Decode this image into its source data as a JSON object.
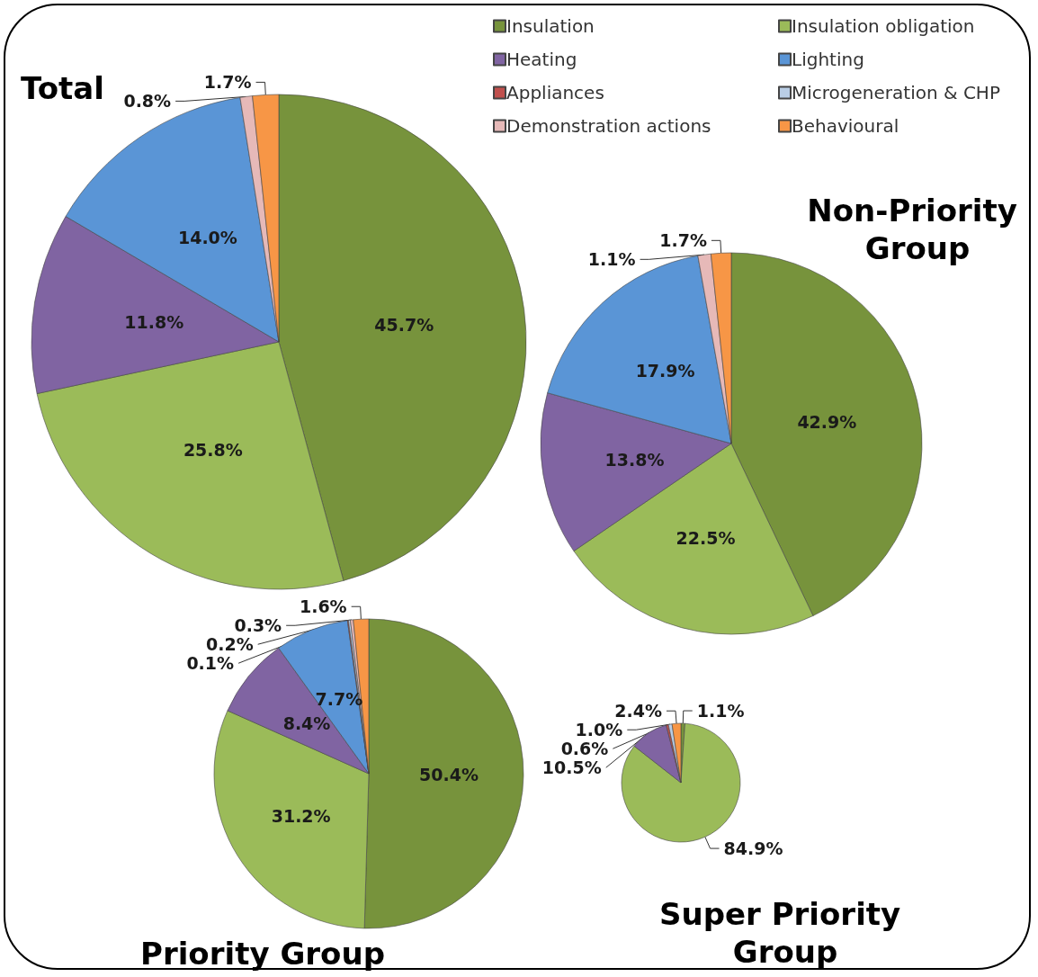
{
  "chart_data": [
    {
      "type": "pie",
      "title": "Total",
      "categories": [
        "Insulation",
        "Insulation obligation",
        "Heating",
        "Lighting",
        "Appliances",
        "Microgeneration & CHP",
        "Demonstration actions",
        "Behavioural"
      ],
      "values": [
        45.7,
        25.8,
        11.8,
        14.0,
        null,
        null,
        0.8,
        1.7
      ],
      "value_labels": [
        "45.7%",
        "25.8%",
        "11.8%",
        "14.0%",
        null,
        null,
        "0.8%",
        "1.7%"
      ],
      "colors": [
        "#77933c",
        "#9bbb59",
        "#8064a2",
        "#5a95d6",
        "#c0504d",
        "#b9cde5",
        "#e6b9b8",
        "#f79646"
      ],
      "legend": "top right"
    },
    {
      "type": "pie",
      "title": "Non-Priority Group",
      "categories": [
        null,
        null,
        null,
        null,
        null,
        null,
        null,
        null
      ],
      "values": [
        42.9,
        22.5,
        13.8,
        17.9,
        null,
        null,
        1.1,
        1.7
      ],
      "value_labels": [
        "42.9%",
        "22.5%",
        "13.8%",
        "17.9%",
        null,
        null,
        "1.1%",
        "1.7%"
      ],
      "colors": [
        "#77933c",
        "#9bbb59",
        "#8064a2",
        "#5a95d6",
        "#c0504d",
        "#b9cde5",
        "#e6b9b8",
        "#f79646"
      ]
    },
    {
      "type": "pie",
      "title": "Priority Group",
      "categories": [
        null,
        null,
        null,
        null,
        null,
        null,
        null,
        null
      ],
      "values": [
        50.4,
        31.2,
        8.4,
        7.7,
        0.1,
        0.2,
        0.3,
        1.6
      ],
      "value_labels": [
        "50.4%",
        "31.2%",
        "8.4%",
        "7.7%",
        "0.1%",
        "0.2%",
        "0.3%",
        "1.6%"
      ],
      "colors": [
        "#77933c",
        "#9bbb59",
        "#8064a2",
        "#5a95d6",
        "#c0504d",
        "#b9cde5",
        "#e6b9b8",
        "#f79646"
      ]
    },
    {
      "type": "pie",
      "title": "Super Priority Group",
      "categories": [
        null,
        null,
        null,
        null,
        null,
        null,
        null,
        null
      ],
      "values": [
        1.1,
        84.9,
        10.5,
        null,
        0.6,
        1.0,
        null,
        2.4
      ],
      "value_labels": [
        "1.1%",
        "84.9%",
        "10.5%",
        null,
        "0.6%",
        "1.0%",
        null,
        "2.4%"
      ],
      "colors": [
        "#77933c",
        "#9bbb59",
        "#8064a2",
        "#5a95d6",
        "#c0504d",
        "#b9cde5",
        "#e6b9b8",
        "#f79646"
      ]
    }
  ]
}
